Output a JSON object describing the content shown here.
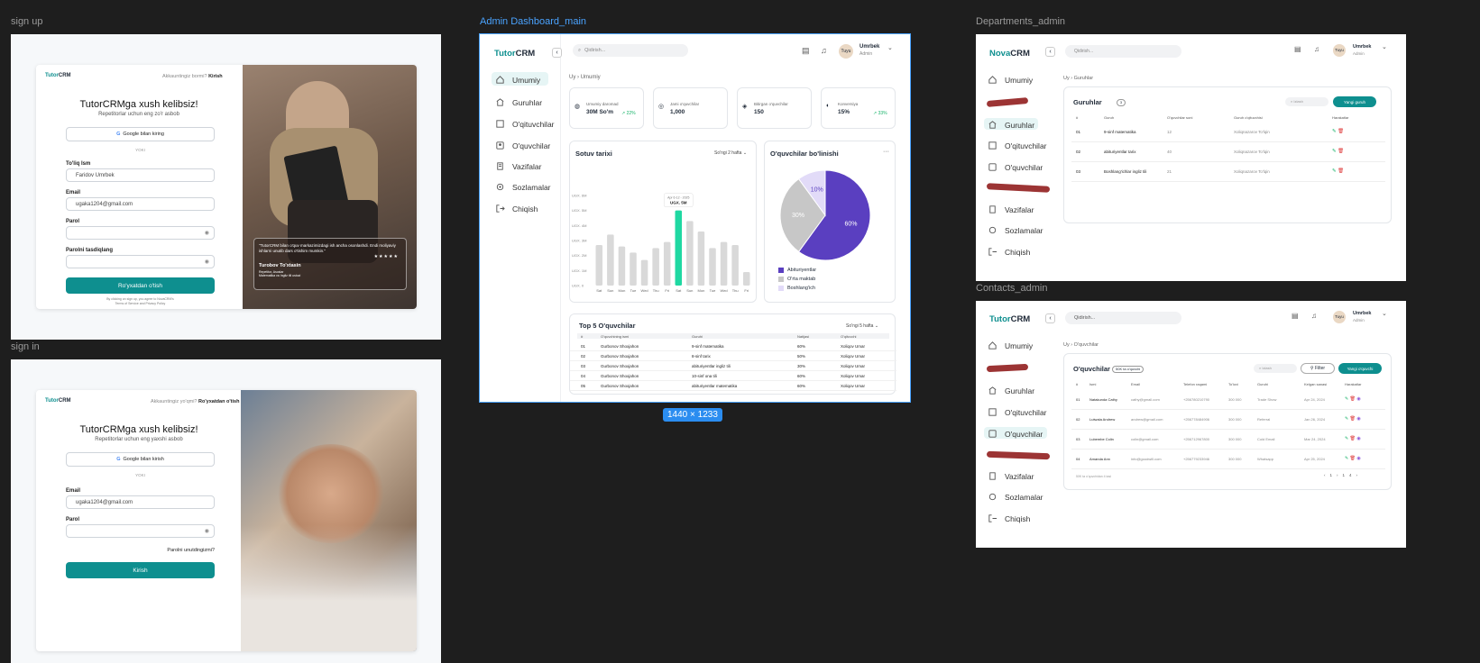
{
  "frames": {
    "signup": "sign up",
    "signin": "sign in",
    "dashboard": "Admin Dashboard_main",
    "departments": "Departments_admin",
    "contacts": "Contacts_admin",
    "dim_badge": "1440 × 1233"
  },
  "brand": {
    "tutor_a": "Tutor",
    "tutor_b": "CRM",
    "nova_a": "Nova",
    "nova_b": "CRM"
  },
  "signup": {
    "top_q": "Akkauntingiz bormi?",
    "top_link": "Kirish",
    "title": "TutorCRMga xush kelibsiz!",
    "subtitle": "Repetitorlar uchun eng zo'r asbob",
    "google": "Google bilan kiring",
    "or": "YOKI",
    "name_label": "To'liq Ism",
    "name_value": "Faridov Umrbek",
    "email_label": "Email",
    "email_value": "ugaka1204@gmail.com",
    "pass_label": "Parol",
    "pass2_label": "Parolni tasdiqlang",
    "submit": "Ro'yxatdan o'tish",
    "terms1": "By clicking on sign up, you agree to NovaCRM's",
    "terms2": "Terms of Service and Privacy Policy",
    "quote": "\"TutorCRM bilan o'quv markazimizdagi ish ancha osonlashdi. Endi moliyaviy ishlarni unutib dars o'tishim mumkin.\"",
    "stars": "★★★★★",
    "author": "Turobov To'xtasin",
    "role": "Repetitor, Asoslar",
    "role2": "Matematika va Ingliz tili ustozi"
  },
  "signin": {
    "top_q": "Akkauntingiz yo'qmi?",
    "top_link": "Ro'yxatdan o'tish",
    "title": "TutorCRMga xush kelibsiz!",
    "subtitle": "Repetitorlar uchun eng yaxshi asbob",
    "google": "Google bilan kirish",
    "or": "YOKI",
    "email_label": "Email",
    "email_value": "ugaka1204@gmail.com",
    "pass_label": "Parol",
    "forgot": "Parolni unutdingizmi?",
    "submit": "Kirish"
  },
  "nav": {
    "search": "Qidirish...",
    "user_name": "Umrbek",
    "user_role": "Admin",
    "avatar": "Tuyu",
    "items": [
      "Umumiy",
      "Guruhlar",
      "O'qituvchilar",
      "O'quvchilar",
      "Vazifalar",
      "Sozlamalar",
      "Chiqish"
    ]
  },
  "dashboard": {
    "crumb_home": "Uy",
    "crumb_page": "Umumiy",
    "stats": [
      {
        "label": "Umumiy daromad",
        "value": "30M So'm",
        "delta": "22%"
      },
      {
        "label": "Jami o'quvchilar",
        "value": "1,000",
        "delta": ""
      },
      {
        "label": "Bitirgan o'quvchilar",
        "value": "150",
        "delta": ""
      },
      {
        "label": "Konversiya",
        "value": "15%",
        "delta": "33%"
      }
    ],
    "sales_title": "Sotuv tarixi",
    "sales_range": "So'ngi 2 hafta",
    "tooltip_date": "Apr 6-12 - 2025",
    "tooltip_value": "UGX. 5M",
    "pie_title": "O'quvchilar bo'linishi",
    "pie_more": "···",
    "legend": [
      "Abituriyentlar",
      "O'rta maktab",
      "Boshlang'ich"
    ],
    "top_title": "Top 5 O'quvchilar",
    "top_range": "So'ngi 5 hafta",
    "top_headers": [
      "#",
      "O'quvchining ismi",
      "Guruhi",
      "Natijasi",
      "O'qituvchi"
    ],
    "top_rows": [
      [
        "01",
        "Gurbonov Shoxjahon",
        "9-sinf matematika",
        "60%",
        "Xoliqov Umar"
      ],
      [
        "02",
        "Gurbonov Shoxjahon",
        "8-sinf tarix",
        "50%",
        "Xoliqov Umar"
      ],
      [
        "03",
        "Gurbonov Shoxjahon",
        "abituriyentlar ingliz tili",
        "30%",
        "Xoliqov Umar"
      ],
      [
        "04",
        "Gurbonov Shoxjahon",
        "10-sinf ona tili",
        "60%",
        "Xoliqov Umar"
      ],
      [
        "05",
        "Gurbonov Shoxjahon",
        "abituriyentlar matematika",
        "60%",
        "Xoliqov Umar"
      ]
    ]
  },
  "chart_data": [
    {
      "type": "bar",
      "title": "Sotuv tarixi",
      "categories": [
        "Sat",
        "Sun",
        "Mon",
        "Tue",
        "Wed",
        "Thu",
        "Fri",
        "Sat",
        "Sun",
        "Mon",
        "Tue",
        "Wed",
        "Thu",
        "Fri"
      ],
      "values": [
        2.7,
        3.4,
        2.6,
        2.2,
        1.7,
        2.5,
        2.9,
        5.0,
        4.3,
        3.6,
        2.5,
        2.9,
        2.7,
        0.9
      ],
      "highlight_index": 7,
      "yticks": [
        "UGX. 0",
        "UGX. 1M",
        "UGX. 2M",
        "UGX. 3M",
        "UGX. 4M",
        "UGX. 5M",
        "UGX. 6M"
      ],
      "ylim": [
        0,
        6
      ],
      "colors": {
        "bar": "#d9d9d9",
        "highlight": "#1fd8a2"
      }
    },
    {
      "type": "pie",
      "title": "O'quvchilar bo'linishi",
      "categories": [
        "Abituriyentlar",
        "O'rta maktab",
        "Boshlang'ich"
      ],
      "values": [
        60,
        30,
        10
      ],
      "labels": [
        "60%",
        "30%",
        "10%"
      ],
      "colors": [
        "#5a3fc0",
        "#c7c7c7",
        "#e2dbf8"
      ]
    }
  ],
  "departments": {
    "crumb_home": "Uy",
    "crumb_page": "Guruhlar",
    "title": "Guruhlar",
    "count": "3",
    "search": "Izlash",
    "new_btn": "Yangi guruh",
    "headers": [
      "#",
      "Guruh",
      "O'quvchilar soni",
      "Guruh o'qituvchisi",
      "Harakatlar"
    ],
    "rows": [
      [
        "01",
        "9-sinf matematika",
        "12",
        "Xoliqnazarov To'lqin"
      ],
      [
        "02",
        "abituriyentlar tarix",
        "40",
        "Xoliqnazarov To'lqin"
      ],
      [
        "03",
        "Boshlang'ichlar ingliz tili",
        "21",
        "Xoliqnazarov To'lqin"
      ]
    ]
  },
  "contacts": {
    "crumb_home": "Uy",
    "crumb_page": "O'quvchilar",
    "title": "O'quvchilar",
    "count": "50K ta o'quvchi",
    "search": "Izlash",
    "filter": "Filter",
    "new_btn": "Yangi o'quvchi",
    "headers": [
      "#",
      "Ismi",
      "Email",
      "Telefon raqami",
      "To'lovi",
      "Guruhi",
      "Kelgan sanasi",
      "Harakatlar"
    ],
    "rows": [
      [
        "01",
        "Natakunda Cathy",
        "cathy@gmail.com",
        "+256780210790",
        "300 000",
        "Trade Show",
        "Apr 24, 2024"
      ],
      [
        "02",
        "Lutwala Andrew",
        "andrew@gmail.com",
        "+256778484906",
        "300 000",
        "Referral",
        "Jan 26, 2024"
      ],
      [
        "03",
        "Lubembe Colin",
        "colin@gmail.com",
        "+256712967800",
        "300 000",
        "Cold Email",
        "Mar 24, 2024"
      ],
      [
        "04",
        "Amanda Ann",
        "info@goodwill.com",
        "+256779233946",
        "300 000",
        "Whatsapp",
        "Apr 25, 2024"
      ]
    ],
    "footer": "50K ta o'quvchidan 4 tasi",
    "pages": [
      "‹",
      "1",
      "›",
      "1",
      "4",
      "›"
    ]
  }
}
